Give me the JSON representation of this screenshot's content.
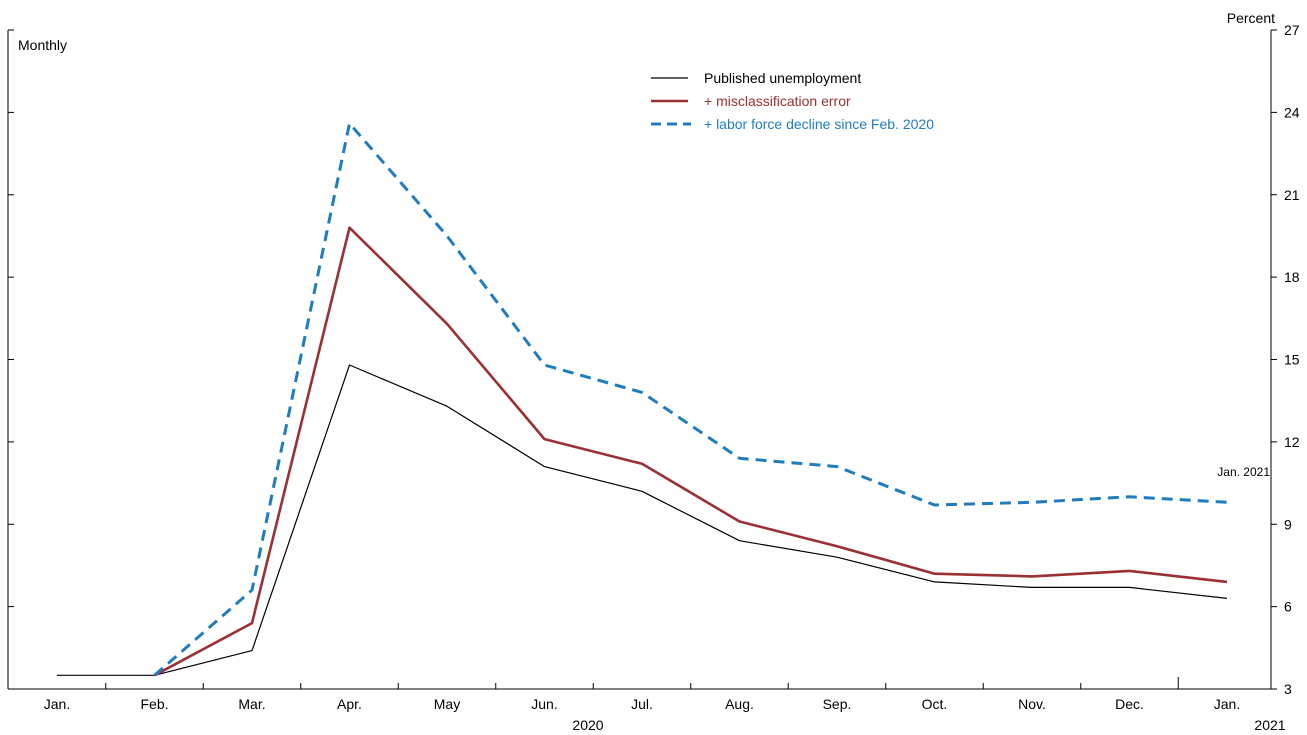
{
  "chart_data": {
    "type": "line",
    "frequency_label": "Monthly",
    "y_unit_label": "Percent",
    "categories": [
      "Jan.",
      "Feb.",
      "Mar.",
      "Apr.",
      "May",
      "Jun.",
      "Jul.",
      "Aug.",
      "Sep.",
      "Oct.",
      "Nov.",
      "Dec.",
      "Jan."
    ],
    "year_labels": [
      "2020",
      "2021"
    ],
    "ylim": [
      3,
      27
    ],
    "yticks": [
      "3",
      "6",
      "9",
      "12",
      "15",
      "18",
      "21",
      "24",
      "27"
    ],
    "y_axis_side": "right",
    "grid": false,
    "legend_position": "top-center",
    "annotation": "Jan. 2021",
    "series": [
      {
        "name": "Published unemployment",
        "color": "#000000",
        "style": "solid-thin",
        "values": [
          3.5,
          3.5,
          4.4,
          14.8,
          13.3,
          11.1,
          10.2,
          8.4,
          7.8,
          6.9,
          6.7,
          6.7,
          6.3
        ]
      },
      {
        "name": "+ misclassification error",
        "color": "#9b3034",
        "style": "solid-thick",
        "values": [
          null,
          3.5,
          5.4,
          19.8,
          16.3,
          12.1,
          11.2,
          9.1,
          8.2,
          7.2,
          7.1,
          7.3,
          6.9
        ]
      },
      {
        "name": "+ labor force decline since Feb. 2020",
        "color": "#1f7dbf",
        "style": "dashed",
        "values": [
          null,
          3.5,
          6.6,
          23.6,
          19.5,
          14.8,
          13.8,
          11.4,
          11.1,
          9.7,
          9.8,
          10.0,
          9.8
        ]
      }
    ]
  }
}
